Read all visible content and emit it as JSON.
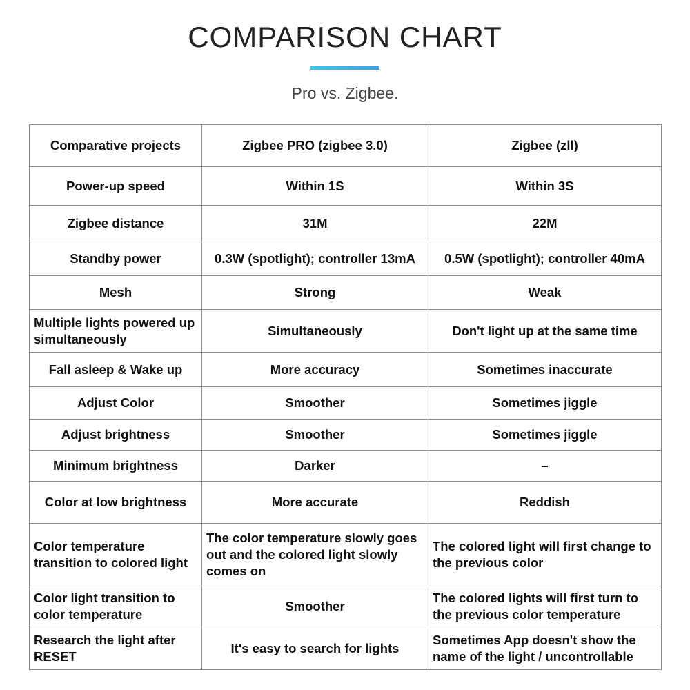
{
  "header": {
    "title": "COMPARISON CHART",
    "subtitle": "Pro vs. Zigbee."
  },
  "table": {
    "rows": [
      [
        "Comparative projects",
        "Zigbee PRO (zigbee 3.0)",
        "Zigbee (zll)"
      ],
      [
        "Power-up speed",
        "Within 1S",
        "Within 3S"
      ],
      [
        "Zigbee distance",
        "31M",
        "22M"
      ],
      [
        "Standby power",
        "0.3W (spotlight); controller 13mA",
        "0.5W (spotlight); controller 40mA"
      ],
      [
        "Mesh",
        "Strong",
        "Weak"
      ],
      [
        "Multiple lights powered up simultaneously",
        "Simultaneously",
        "Don't light up at the same time"
      ],
      [
        "Fall asleep & Wake up",
        "More accuracy",
        "Sometimes inaccurate"
      ],
      [
        "Adjust Color",
        "Smoother",
        "Sometimes jiggle"
      ],
      [
        "Adjust brightness",
        "Smoother",
        "Sometimes jiggle"
      ],
      [
        "Minimum brightness",
        "Darker",
        "–"
      ],
      [
        "Color at low brightness",
        "More accurate",
        "Reddish"
      ],
      [
        "Color temperature transition to colored light",
        "The color temperature slowly goes out and the colored light slowly comes on",
        "The colored light will first change to the previous color"
      ],
      [
        "Color light transition to color temperature",
        "Smoother",
        "The colored lights will first turn to the previous color temperature"
      ],
      [
        "Research the light after RESET",
        "It's easy to search for lights",
        "Sometimes App doesn't show the name of the light / uncontrollable"
      ]
    ]
  }
}
